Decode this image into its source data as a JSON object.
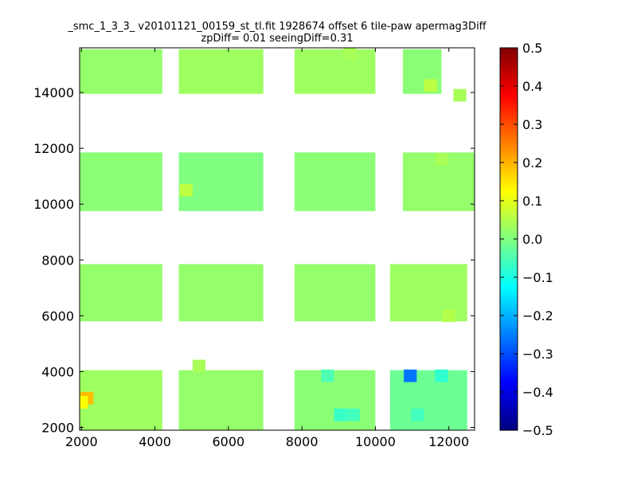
{
  "chart_data": {
    "type": "heatmap",
    "title": "_smc_1_3_3_ v20101121_00159_st_tl.fit 1928674 offset 6 tile-paw apermag3Diff",
    "subtitle": "zpDiff= 0.01 seeingDiff=0.31",
    "xlabel": "",
    "ylabel": "",
    "xlim": [
      1950,
      12700
    ],
    "ylim": [
      1900,
      15600
    ],
    "xticks": [
      2000,
      4000,
      6000,
      8000,
      10000,
      12000
    ],
    "yticks": [
      2000,
      4000,
      6000,
      8000,
      10000,
      12000,
      14000
    ],
    "xtick_labels": [
      "2000",
      "4000",
      "6000",
      "8000",
      "10000",
      "12000"
    ],
    "ytick_labels": [
      "2000",
      "4000",
      "6000",
      "8000",
      "10000",
      "12000",
      "14000"
    ],
    "colormap": "jet",
    "clim": [
      -0.5,
      0.5
    ],
    "colorbar_ticks": [
      0.5,
      0.4,
      0.3,
      0.2,
      0.1,
      0.0,
      -0.1,
      -0.2,
      -0.3,
      -0.4,
      -0.5
    ],
    "colorbar_labels": [
      "0.5",
      "0.4",
      "0.3",
      "0.2",
      "0.1",
      "0.0",
      "−0.1",
      "−0.2",
      "−0.3",
      "−0.4",
      "−0.5"
    ],
    "grid": false,
    "cell_width": 350,
    "cell_height": 450,
    "background_value": 0.01,
    "outliers": [
      {
        "x": 10950,
        "y": 3850,
        "value": -0.26
      },
      {
        "x": 2150,
        "y": 3050,
        "value": 0.19
      },
      {
        "x": 11800,
        "y": 3850,
        "value": -0.08
      },
      {
        "x": 9050,
        "y": 2450,
        "value": -0.07
      },
      {
        "x": 9400,
        "y": 2450,
        "value": -0.06
      },
      {
        "x": 11150,
        "y": 2450,
        "value": -0.06
      },
      {
        "x": 8700,
        "y": 3850,
        "value": -0.05
      },
      {
        "x": 11500,
        "y": 14250,
        "value": 0.06
      },
      {
        "x": 4850,
        "y": 10500,
        "value": 0.06
      },
      {
        "x": 2000,
        "y": 2900,
        "value": 0.12
      },
      {
        "x": 5200,
        "y": 4200,
        "value": 0.04
      },
      {
        "x": 9300,
        "y": 15400,
        "value": 0.04
      },
      {
        "x": 11800,
        "y": 11600,
        "value": 0.04
      },
      {
        "x": 12000,
        "y": 6000,
        "value": 0.05
      },
      {
        "x": 12300,
        "y": 13900,
        "value": 0.04
      }
    ],
    "groups": [
      {
        "x": [
          1950,
          4200
        ],
        "y": [
          13950,
          15550
        ],
        "value": 0.02
      },
      {
        "x": [
          4650,
          6950
        ],
        "y": [
          13950,
          15550
        ],
        "value": 0.03
      },
      {
        "x": [
          7800,
          10000
        ],
        "y": [
          13950,
          15550
        ],
        "value": 0.03
      },
      {
        "x": [
          10750,
          11800
        ],
        "y": [
          13950,
          15550
        ],
        "value": 0.01
      },
      {
        "x": [
          1950,
          4200
        ],
        "y": [
          9750,
          11850
        ],
        "value": 0.01
      },
      {
        "x": [
          4650,
          6950
        ],
        "y": [
          9750,
          11850
        ],
        "value": 0.0
      },
      {
        "x": [
          7800,
          10000
        ],
        "y": [
          9750,
          11850
        ],
        "value": 0.01
      },
      {
        "x": [
          10750,
          12700
        ],
        "y": [
          9750,
          11850
        ],
        "value": 0.02
      },
      {
        "x": [
          1950,
          4200
        ],
        "y": [
          5800,
          7850
        ],
        "value": 0.02
      },
      {
        "x": [
          4650,
          6950
        ],
        "y": [
          5800,
          7850
        ],
        "value": 0.02
      },
      {
        "x": [
          7800,
          10000
        ],
        "y": [
          5800,
          7850
        ],
        "value": 0.02
      },
      {
        "x": [
          10400,
          12500
        ],
        "y": [
          5800,
          7850
        ],
        "value": 0.03
      },
      {
        "x": [
          1950,
          4200
        ],
        "y": [
          1900,
          4050
        ],
        "value": 0.03
      },
      {
        "x": [
          4650,
          6950
        ],
        "y": [
          1900,
          4050
        ],
        "value": 0.02
      },
      {
        "x": [
          7800,
          10000
        ],
        "y": [
          1900,
          4050
        ],
        "value": 0.01
      },
      {
        "x": [
          10400,
          12500
        ],
        "y": [
          1900,
          4050
        ],
        "value": -0.02
      }
    ]
  }
}
